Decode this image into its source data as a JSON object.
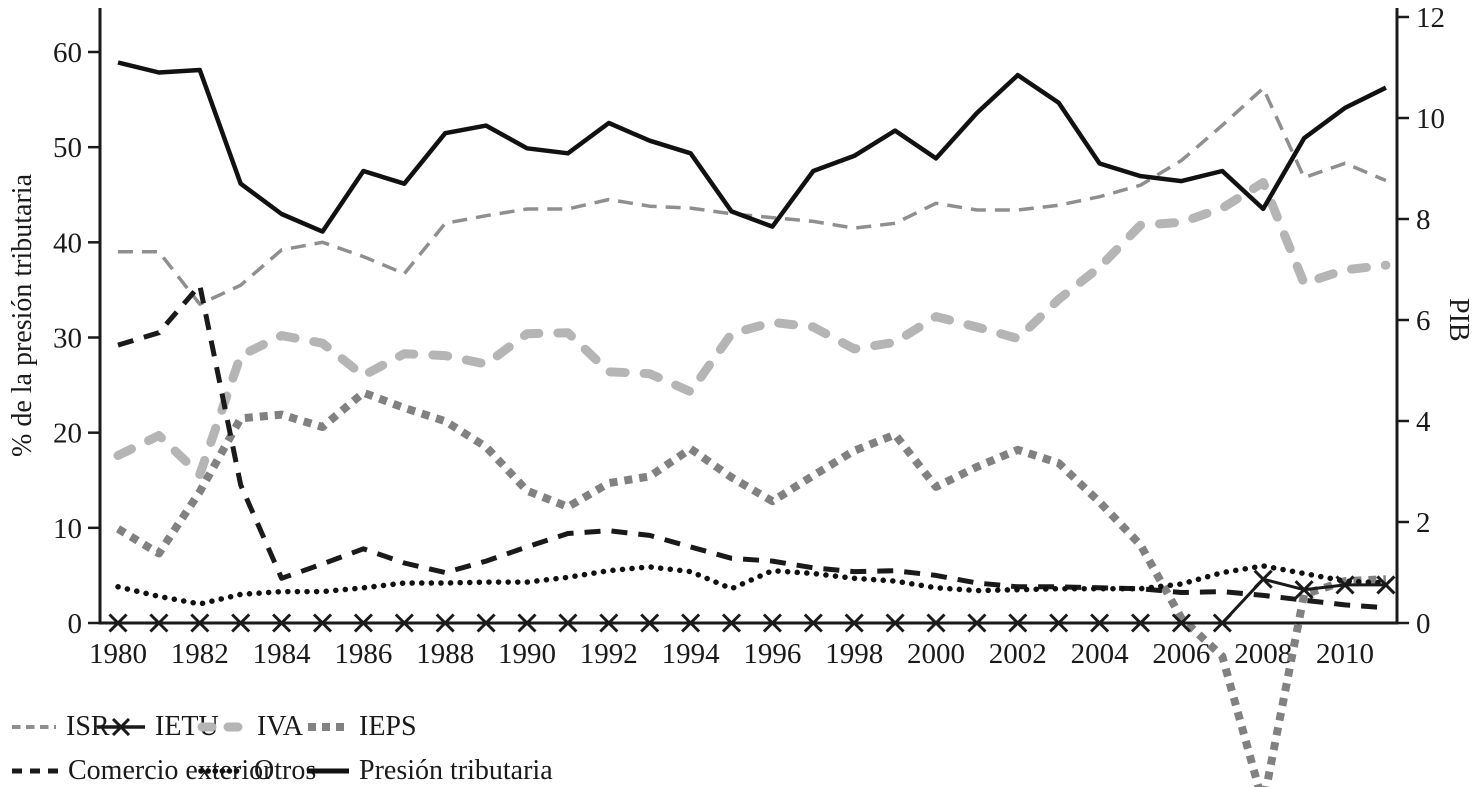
{
  "figure_background": "#ffffff",
  "chart_data": {
    "type": "line",
    "x": [
      1980,
      1981,
      1982,
      1983,
      1984,
      1985,
      1986,
      1987,
      1988,
      1989,
      1990,
      1991,
      1992,
      1993,
      1994,
      1995,
      1996,
      1997,
      1998,
      1999,
      2000,
      2001,
      2002,
      2003,
      2004,
      2005,
      2006,
      2007,
      2008,
      2009,
      2010,
      2011
    ],
    "x_tick_labels": [
      1980,
      1982,
      1984,
      1986,
      1988,
      1990,
      1992,
      1994,
      1996,
      1998,
      2000,
      2002,
      2004,
      2006,
      2008,
      2010
    ],
    "left_axis": {
      "label": "% de la presión tributaria",
      "ticks": [
        0,
        10,
        20,
        30,
        40,
        50,
        60
      ],
      "range": [
        0,
        60
      ]
    },
    "right_axis": {
      "label": "PIB",
      "ticks": [
        0,
        2,
        4,
        6,
        8,
        10,
        12
      ],
      "range": [
        0,
        12
      ]
    },
    "grid": false,
    "legend_position": "bottom-left",
    "series": [
      {
        "name": "ISR",
        "axis": "left",
        "style": "dashed-thin-gray",
        "color": "#8f8f8f",
        "values": [
          39.0,
          39.0,
          33.5,
          35.5,
          39.2,
          40.0,
          38.5,
          36.7,
          42.0,
          42.8,
          43.5,
          43.5,
          44.5,
          43.8,
          43.6,
          43.0,
          42.6,
          42.2,
          41.5,
          42.0,
          44.1,
          43.4,
          43.4,
          43.9,
          44.8,
          46.0,
          48.6,
          52.3,
          56.2,
          46.8,
          48.3,
          46.5
        ]
      },
      {
        "name": "IETU",
        "axis": "left",
        "style": "solid-x-marker",
        "color": "#1a1a1a",
        "values": [
          0,
          0,
          0,
          0,
          0,
          0,
          0,
          0,
          0,
          0,
          0,
          0,
          0,
          0,
          0,
          0,
          0,
          0,
          0,
          0,
          0,
          0,
          0,
          0,
          0,
          0,
          0,
          0,
          4.6,
          3.5,
          4.0,
          4.0
        ]
      },
      {
        "name": "IVA",
        "axis": "left",
        "style": "dashed-thick-lightgray",
        "color": "#b5b5b5",
        "values": [
          17.6,
          19.7,
          15.6,
          28.1,
          30.2,
          29.4,
          26.0,
          28.3,
          28.1,
          27.2,
          30.4,
          30.5,
          26.4,
          26.2,
          24.3,
          30.4,
          31.6,
          31.1,
          28.8,
          29.5,
          32.2,
          31.1,
          29.9,
          34.0,
          37.4,
          41.8,
          42.1,
          43.6,
          46.3,
          35.7,
          37.1,
          37.6
        ]
      },
      {
        "name": "IEPS",
        "axis": "left",
        "style": "dotted-square-gray",
        "color": "#818181",
        "values": [
          9.9,
          7.3,
          13.8,
          21.5,
          21.9,
          20.6,
          24.2,
          22.6,
          21.2,
          18.5,
          13.9,
          12.2,
          14.7,
          15.4,
          18.3,
          15.3,
          12.8,
          15.5,
          18.1,
          19.8,
          14.3,
          16.4,
          18.2,
          16.8,
          12.7,
          8.2,
          0.5,
          -3.5,
          -19.0,
          3.0,
          4.4,
          4.6
        ]
      },
      {
        "name": "Comercio exterior",
        "axis": "left",
        "style": "dashed-black",
        "color": "#1a1a1a",
        "values": [
          29.2,
          30.5,
          35.5,
          14.5,
          4.7,
          6.2,
          7.8,
          6.3,
          5.3,
          6.5,
          8.0,
          9.4,
          9.7,
          9.2,
          8.0,
          6.8,
          6.5,
          5.8,
          5.4,
          5.5,
          5.0,
          4.2,
          3.8,
          3.8,
          3.7,
          3.6,
          3.2,
          3.3,
          2.9,
          2.4,
          1.9,
          1.6
        ]
      },
      {
        "name": "Otros",
        "axis": "left",
        "style": "dotted-round-black",
        "color": "#111111",
        "values": [
          3.8,
          2.8,
          2.0,
          3.0,
          3.3,
          3.3,
          3.7,
          4.2,
          4.2,
          4.3,
          4.3,
          4.8,
          5.5,
          5.9,
          5.4,
          3.6,
          5.5,
          5.2,
          4.7,
          4.4,
          3.7,
          3.4,
          3.5,
          3.6,
          3.6,
          3.6,
          4.1,
          5.3,
          6.0,
          5.2,
          4.4,
          4.2
        ]
      },
      {
        "name": "Presión tributaria",
        "axis": "right",
        "style": "solid-black",
        "color": "#111111",
        "values": [
          11.1,
          10.9,
          10.95,
          8.7,
          8.1,
          7.75,
          8.95,
          8.7,
          9.7,
          9.85,
          9.4,
          9.3,
          9.9,
          9.55,
          9.3,
          8.15,
          7.85,
          8.95,
          9.25,
          9.75,
          9.2,
          10.1,
          10.85,
          10.3,
          9.1,
          8.85,
          8.75,
          8.95,
          8.2,
          9.6,
          10.2,
          10.6
        ]
      }
    ]
  },
  "legend": {
    "row1": [
      "ISR",
      "IETU",
      "IVA",
      "IEPS"
    ],
    "row2": [
      "Comercio exterior",
      "Otros",
      "Presión tributaria"
    ]
  },
  "colors": {
    "axis": "#1a1a1a",
    "isr_gray": "#8f8f8f",
    "iva_lightgray": "#b5b5b5",
    "ieps_gray": "#818181",
    "black": "#1a1a1a"
  }
}
